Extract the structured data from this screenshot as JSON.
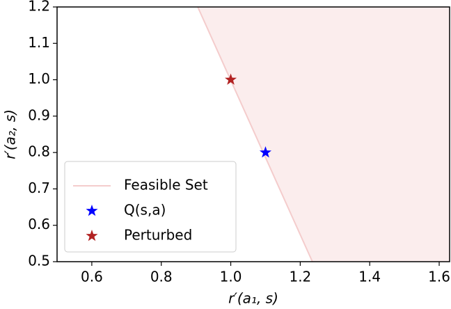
{
  "chart_data": {
    "type": "scatter",
    "xlabel": "r′(a₁, s)",
    "ylabel": "r′(a₂, s)",
    "xlim": [
      0.5,
      1.63
    ],
    "ylim": [
      0.5,
      1.2
    ],
    "xticks": [
      0.6,
      0.8,
      {
        "value": 1,
        "label": "1.0"
      },
      1.2,
      1.4,
      1.6
    ],
    "yticks": [
      0.5,
      0.6,
      0.7,
      0.8,
      0.9,
      {
        "value": 1,
        "label": "1.0"
      },
      1.1,
      1.2
    ],
    "legend": "lower left",
    "series": [
      {
        "name": "Feasible Set",
        "kind": "area",
        "color": "#f4cccc",
        "x": [
          0.905,
          1.235
        ],
        "y": [
          1.2,
          0.5
        ]
      },
      {
        "name": "Q(s,a)",
        "kind": "star",
        "color": "#0000ff",
        "x": [
          1.1
        ],
        "y": [
          0.8
        ]
      },
      {
        "name": "Perturbed",
        "kind": "star",
        "color": "#b22222",
        "x": [
          1.0
        ],
        "y": [
          1.0
        ]
      }
    ]
  }
}
